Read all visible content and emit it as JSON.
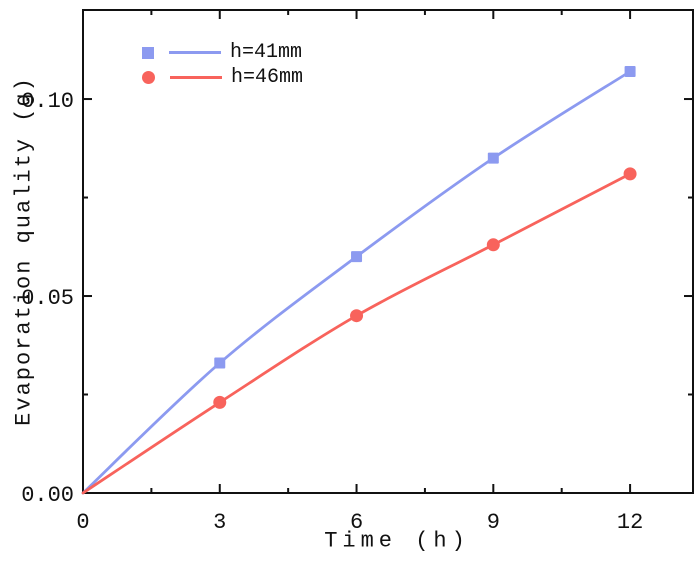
{
  "figure": {
    "background": "#ffffff",
    "axis_color": "#111111",
    "text_color": "#111111"
  },
  "chart_data": {
    "type": "line",
    "title": "",
    "xlabel": "Time (h)",
    "ylabel": "Evaporation quality (g)",
    "xlim": [
      0,
      13.38
    ],
    "ylim": [
      0,
      0.1226
    ],
    "grid": false,
    "legend_position": "upper-left",
    "x_ticks": {
      "major": [
        0,
        3,
        6,
        9,
        12
      ],
      "labels": [
        "0",
        "3",
        "6",
        "9",
        "12"
      ],
      "minor": [
        1.5,
        4.5,
        7.5,
        10.5
      ]
    },
    "y_ticks": {
      "major": [
        0,
        0.05,
        0.1
      ],
      "labels": [
        "0.00",
        "0.05",
        "0.10"
      ],
      "minor": [
        0.025,
        0.075
      ]
    },
    "x": [
      0,
      3,
      6,
      9,
      12
    ],
    "series": [
      {
        "name": "h=41mm",
        "marker": "square",
        "color": "#8C9AF0",
        "values": [
          0,
          0.033,
          0.06,
          0.085,
          0.107
        ]
      },
      {
        "name": "h=46mm",
        "marker": "circle",
        "color": "#F8635C",
        "values": [
          0,
          0.023,
          0.045,
          0.063,
          0.081
        ]
      }
    ]
  }
}
